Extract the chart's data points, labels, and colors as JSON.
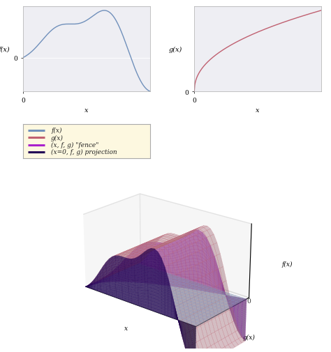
{
  "fig_bg": "#ffffff",
  "top_plot_bg": "#eeeef3",
  "f_color": "#7090bb",
  "g_color": "#c06070",
  "fence_color": "#aa22cc",
  "proj_color": "#220055",
  "back_surface_color": "#e8a0b0",
  "floor_surface_color": "#a8b8d8",
  "legend_bg": "#fdf8e0",
  "legend_border": "#aaaaaa",
  "legend_entries": [
    "f(x)",
    "g(x)",
    "(x, f, g) \"fence\"",
    "(x=0, f, g) projection"
  ],
  "legend_colors": [
    "#7090bb",
    "#c06070",
    "#aa22cc",
    "#220055"
  ],
  "xlabel_top": "x",
  "ylabel_f": "f(x)",
  "ylabel_g": "g(x)",
  "ax3d_xlabel": "x",
  "ax3d_ylabel": "g(x)",
  "ax3d_zlabel": "f(x)",
  "zero_label": "0"
}
